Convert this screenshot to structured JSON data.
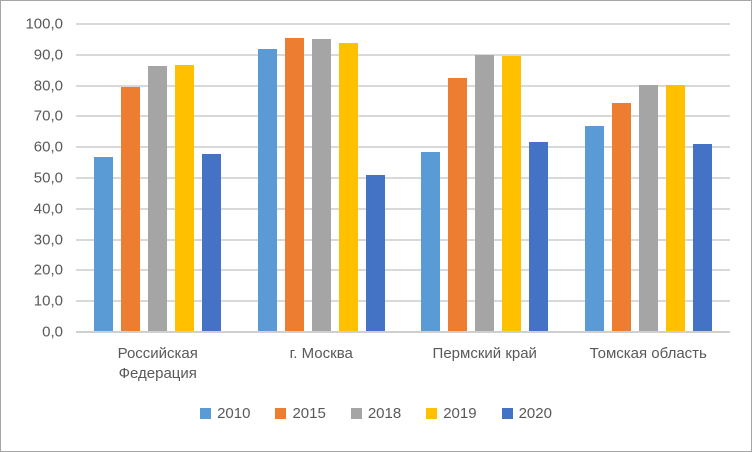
{
  "chart_data": {
    "type": "bar",
    "title": "",
    "categories": [
      "Российская Федерация",
      "г. Москва",
      "Пермский край",
      "Томская область"
    ],
    "series": [
      {
        "name": "2010",
        "color": "#5B9BD5",
        "values": [
          56.9,
          91.9,
          58.3,
          67.0
        ]
      },
      {
        "name": "2015",
        "color": "#ED7D31",
        "values": [
          79.5,
          95.3,
          82.4,
          74.2
        ]
      },
      {
        "name": "2018",
        "color": "#A5A5A5",
        "values": [
          86.3,
          95.1,
          89.9,
          80.2
        ]
      },
      {
        "name": "2019",
        "color": "#FFC000",
        "values": [
          86.6,
          93.9,
          89.5,
          80.1
        ]
      },
      {
        "name": "2020",
        "color": "#4472C4",
        "values": [
          57.9,
          50.9,
          61.8,
          61.0
        ]
      }
    ],
    "ylim": [
      0,
      100
    ],
    "ytick_step": 10,
    "ytick_labels": [
      "0,0",
      "10,0",
      "20,0",
      "30,0",
      "40,0",
      "50,0",
      "60,0",
      "70,0",
      "80,0",
      "90,0",
      "100,0"
    ],
    "grid": true,
    "legend_position": "bottom",
    "xlabel": "",
    "ylabel": ""
  },
  "colors": {
    "gridline": "#D9D9D9",
    "axis_line": "#CFCFCF",
    "text": "#595959",
    "frame_border": "#A6A6A6",
    "background": "#FFFFFF"
  }
}
